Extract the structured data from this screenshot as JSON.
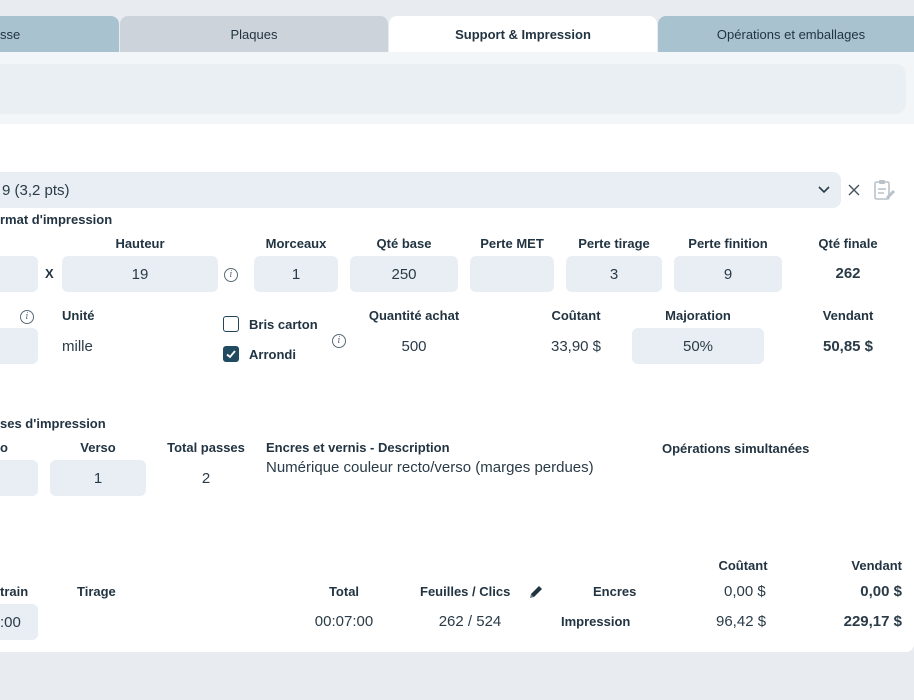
{
  "tabs": [
    {
      "label": "sse"
    },
    {
      "label": "Plaques"
    },
    {
      "label": "Support & Impression"
    },
    {
      "label": "Opérations et emballages"
    }
  ],
  "paper_select": {
    "value": "9 (3,2 pts)"
  },
  "format_section": {
    "title": "rmat d'impression",
    "x_sep": "X",
    "headers": {
      "hauteur": "Hauteur",
      "morceaux": "Morceaux",
      "qte_base": "Qté base",
      "perte_met": "Perte MET",
      "perte_tirage": "Perte tirage",
      "perte_finition": "Perte finition",
      "qte_finale": "Qté finale"
    },
    "values": {
      "hauteur": "19",
      "morceaux": "1",
      "qte_base": "250",
      "perte_met": "",
      "perte_tirage": "3",
      "perte_finition": "9",
      "qte_finale": "262"
    }
  },
  "purchase": {
    "unite_label": "Unité",
    "unite_value": "mille",
    "bris_carton": {
      "label": "Bris carton",
      "checked": false
    },
    "arrondi": {
      "label": "Arrondi",
      "checked": true
    },
    "quantite_achat_label": "Quantité achat",
    "quantite_achat_value": "500",
    "coutant_label": "Coûtant",
    "coutant_value": "33,90 $",
    "majoration_label": "Majoration",
    "majoration_value": "50%",
    "vendant_label": "Vendant",
    "vendant_value": "50,85 $"
  },
  "passes": {
    "title": "ses d'impression",
    "recto_label": "o",
    "verso_label": "Verso",
    "verso_value": "1",
    "total_label": "Total passes",
    "total_value": "2",
    "encres_label": "Encres et vernis - Description",
    "encres_value": "Numérique couleur recto/verso (marges perdues)",
    "operations_label": "Opérations simultanées"
  },
  "costs": {
    "train_label": "train",
    "train_value": ":00",
    "tirage_label": "Tirage",
    "total_label": "Total",
    "total_value": "00:07:00",
    "feuilles_label": "Feuilles / Clics",
    "feuilles_value": "262 / 524",
    "coutant_header": "Coûtant",
    "vendant_header": "Vendant",
    "rows": [
      {
        "label": "Encres",
        "coutant": "0,00 $",
        "vendant": "0,00 $"
      },
      {
        "label": "Impression",
        "coutant": "96,42 $",
        "vendant": "229,17 $"
      }
    ]
  }
}
